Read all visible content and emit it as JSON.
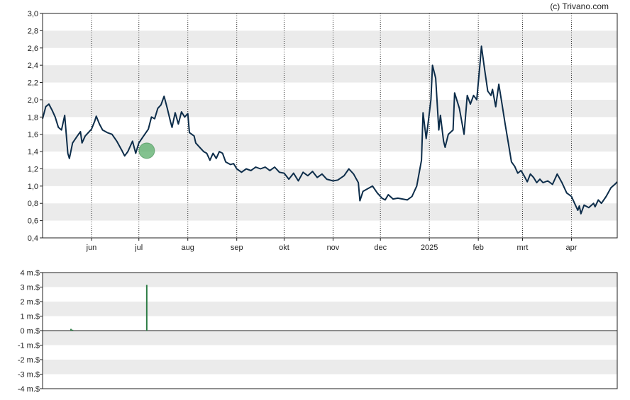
{
  "credit": "(c) Trivano.com",
  "colors": {
    "band": "#ebebeb",
    "line": "#0d2d4a",
    "marker": "#5aad6a",
    "volume_bar": "#2e7d46",
    "frame": "#222222",
    "grid": "#333333"
  },
  "chart_data": [
    {
      "type": "line",
      "title": "",
      "xlabel": "",
      "ylabel": "",
      "ylim": [
        0.4,
        3.0
      ],
      "y_ticks": [
        {
          "value": 3.0,
          "label": "3,0"
        },
        {
          "value": 2.8,
          "label": "2,8"
        },
        {
          "value": 2.6,
          "label": "2,6"
        },
        {
          "value": 2.4,
          "label": "2,4"
        },
        {
          "value": 2.2,
          "label": "2,2"
        },
        {
          "value": 2.0,
          "label": "2,0"
        },
        {
          "value": 1.8,
          "label": "1,8"
        },
        {
          "value": 1.6,
          "label": "1,6"
        },
        {
          "value": 1.4,
          "label": "1,4"
        },
        {
          "value": 1.2,
          "label": "1,2"
        },
        {
          "value": 1.0,
          "label": "1,0"
        },
        {
          "value": 0.8,
          "label": "0,8"
        },
        {
          "value": 0.6,
          "label": "0,6"
        },
        {
          "value": 0.4,
          "label": "0,4"
        }
      ],
      "xlim": [
        "2024-05-01",
        "2025-04-30"
      ],
      "x_ticks": [
        {
          "date": "2024-06-01",
          "label": "jun"
        },
        {
          "date": "2024-07-01",
          "label": "jul"
        },
        {
          "date": "2024-08-01",
          "label": "aug"
        },
        {
          "date": "2024-09-01",
          "label": "sep"
        },
        {
          "date": "2024-10-01",
          "label": "okt"
        },
        {
          "date": "2024-11-01",
          "label": "nov"
        },
        {
          "date": "2024-12-01",
          "label": "dec"
        },
        {
          "date": "2025-01-01",
          "label": "2025"
        },
        {
          "date": "2025-02-01",
          "label": "feb"
        },
        {
          "date": "2025-03-01",
          "label": "mrt"
        },
        {
          "date": "2025-04-01",
          "label": "apr"
        }
      ],
      "grid": "vertical dotted lines at month ticks, alternating horizontal bands",
      "series": [
        {
          "points": [
            [
              "2024-05-01",
              1.78
            ],
            [
              "2024-05-03",
              1.92
            ],
            [
              "2024-05-05",
              1.95
            ],
            [
              "2024-05-07",
              1.88
            ],
            [
              "2024-05-09",
              1.8
            ],
            [
              "2024-05-11",
              1.68
            ],
            [
              "2024-05-13",
              1.65
            ],
            [
              "2024-05-15",
              1.82
            ],
            [
              "2024-05-17",
              1.38
            ],
            [
              "2024-05-18",
              1.32
            ],
            [
              "2024-05-20",
              1.5
            ],
            [
              "2024-05-23",
              1.58
            ],
            [
              "2024-05-25",
              1.63
            ],
            [
              "2024-05-26",
              1.5
            ],
            [
              "2024-05-28",
              1.58
            ],
            [
              "2024-06-01",
              1.66
            ],
            [
              "2024-06-03",
              1.75
            ],
            [
              "2024-06-04",
              1.81
            ],
            [
              "2024-06-06",
              1.72
            ],
            [
              "2024-06-08",
              1.65
            ],
            [
              "2024-06-11",
              1.62
            ],
            [
              "2024-06-14",
              1.6
            ],
            [
              "2024-06-17",
              1.52
            ],
            [
              "2024-06-20",
              1.42
            ],
            [
              "2024-06-22",
              1.35
            ],
            [
              "2024-06-24",
              1.4
            ],
            [
              "2024-06-27",
              1.52
            ],
            [
              "2024-06-29",
              1.38
            ],
            [
              "2024-07-01",
              1.5
            ],
            [
              "2024-07-04",
              1.58
            ],
            [
              "2024-07-07",
              1.66
            ],
            [
              "2024-07-09",
              1.8
            ],
            [
              "2024-07-11",
              1.78
            ],
            [
              "2024-07-13",
              1.9
            ],
            [
              "2024-07-15",
              1.94
            ],
            [
              "2024-07-17",
              2.04
            ],
            [
              "2024-07-19",
              1.9
            ],
            [
              "2024-07-21",
              1.75
            ],
            [
              "2024-07-22",
              1.68
            ],
            [
              "2024-07-24",
              1.85
            ],
            [
              "2024-07-26",
              1.72
            ],
            [
              "2024-07-28",
              1.86
            ],
            [
              "2024-07-30",
              1.8
            ],
            [
              "2024-08-01",
              1.84
            ],
            [
              "2024-08-02",
              1.62
            ],
            [
              "2024-08-05",
              1.58
            ],
            [
              "2024-08-06",
              1.5
            ],
            [
              "2024-08-08",
              1.46
            ],
            [
              "2024-08-11",
              1.4
            ],
            [
              "2024-08-13",
              1.38
            ],
            [
              "2024-08-15",
              1.3
            ],
            [
              "2024-08-17",
              1.38
            ],
            [
              "2024-08-19",
              1.32
            ],
            [
              "2024-08-21",
              1.4
            ],
            [
              "2024-08-23",
              1.38
            ],
            [
              "2024-08-25",
              1.28
            ],
            [
              "2024-08-28",
              1.25
            ],
            [
              "2024-08-30",
              1.26
            ],
            [
              "2024-09-01",
              1.2
            ],
            [
              "2024-09-04",
              1.16
            ],
            [
              "2024-09-07",
              1.2
            ],
            [
              "2024-09-10",
              1.18
            ],
            [
              "2024-09-13",
              1.22
            ],
            [
              "2024-09-16",
              1.2
            ],
            [
              "2024-09-19",
              1.22
            ],
            [
              "2024-09-22",
              1.18
            ],
            [
              "2024-09-25",
              1.22
            ],
            [
              "2024-09-28",
              1.16
            ],
            [
              "2024-10-01",
              1.15
            ],
            [
              "2024-10-04",
              1.08
            ],
            [
              "2024-10-07",
              1.15
            ],
            [
              "2024-10-10",
              1.06
            ],
            [
              "2024-10-13",
              1.16
            ],
            [
              "2024-10-16",
              1.12
            ],
            [
              "2024-10-19",
              1.17
            ],
            [
              "2024-10-22",
              1.1
            ],
            [
              "2024-10-25",
              1.14
            ],
            [
              "2024-10-28",
              1.08
            ],
            [
              "2024-11-01",
              1.06
            ],
            [
              "2024-11-04",
              1.07
            ],
            [
              "2024-11-08",
              1.12
            ],
            [
              "2024-11-11",
              1.2
            ],
            [
              "2024-11-14",
              1.14
            ],
            [
              "2024-11-17",
              1.04
            ],
            [
              "2024-11-18",
              0.83
            ],
            [
              "2024-11-20",
              0.94
            ],
            [
              "2024-11-23",
              0.97
            ],
            [
              "2024-11-26",
              1.0
            ],
            [
              "2024-11-29",
              0.92
            ],
            [
              "2024-12-02",
              0.86
            ],
            [
              "2024-12-04",
              0.84
            ],
            [
              "2024-12-06",
              0.9
            ],
            [
              "2024-12-09",
              0.85
            ],
            [
              "2024-12-12",
              0.86
            ],
            [
              "2024-12-15",
              0.85
            ],
            [
              "2024-12-18",
              0.84
            ],
            [
              "2024-12-21",
              0.88
            ],
            [
              "2024-12-24",
              1.0
            ],
            [
              "2024-12-27",
              1.3
            ],
            [
              "2024-12-28",
              1.85
            ],
            [
              "2024-12-30",
              1.55
            ],
            [
              "2024-12-31",
              1.7
            ],
            [
              "2025-01-02",
              2.0
            ],
            [
              "2025-01-03",
              2.4
            ],
            [
              "2025-01-05",
              2.25
            ],
            [
              "2025-01-07",
              1.65
            ],
            [
              "2025-01-08",
              1.82
            ],
            [
              "2025-01-10",
              1.52
            ],
            [
              "2025-01-11",
              1.45
            ],
            [
              "2025-01-13",
              1.6
            ],
            [
              "2025-01-16",
              1.65
            ],
            [
              "2025-01-17",
              2.08
            ],
            [
              "2025-01-20",
              1.9
            ],
            [
              "2025-01-22",
              1.7
            ],
            [
              "2025-01-23",
              1.6
            ],
            [
              "2025-01-25",
              2.05
            ],
            [
              "2025-01-27",
              1.95
            ],
            [
              "2025-01-29",
              2.05
            ],
            [
              "2025-01-31",
              2.0
            ],
            [
              "2025-02-02",
              2.4
            ],
            [
              "2025-02-03",
              2.62
            ],
            [
              "2025-02-05",
              2.35
            ],
            [
              "2025-02-07",
              2.1
            ],
            [
              "2025-02-09",
              2.05
            ],
            [
              "2025-02-10",
              2.12
            ],
            [
              "2025-02-12",
              1.92
            ],
            [
              "2025-02-14",
              2.18
            ],
            [
              "2025-02-16",
              1.95
            ],
            [
              "2025-02-18",
              1.72
            ],
            [
              "2025-02-20",
              1.5
            ],
            [
              "2025-02-22",
              1.28
            ],
            [
              "2025-02-24",
              1.23
            ],
            [
              "2025-02-26",
              1.15
            ],
            [
              "2025-02-28",
              1.18
            ],
            [
              "2025-03-02",
              1.12
            ],
            [
              "2025-03-04",
              1.05
            ],
            [
              "2025-03-06",
              1.14
            ],
            [
              "2025-03-08",
              1.1
            ],
            [
              "2025-03-10",
              1.04
            ],
            [
              "2025-03-12",
              1.08
            ],
            [
              "2025-03-14",
              1.04
            ],
            [
              "2025-03-17",
              1.06
            ],
            [
              "2025-03-20",
              1.02
            ],
            [
              "2025-03-23",
              1.14
            ],
            [
              "2025-03-26",
              1.04
            ],
            [
              "2025-03-29",
              0.92
            ],
            [
              "2025-04-01",
              0.88
            ],
            [
              "2025-04-03",
              0.8
            ],
            [
              "2025-04-05",
              0.72
            ],
            [
              "2025-04-06",
              0.77
            ],
            [
              "2025-04-07",
              0.68
            ],
            [
              "2025-04-09",
              0.78
            ],
            [
              "2025-04-12",
              0.75
            ],
            [
              "2025-04-15",
              0.8
            ],
            [
              "2025-04-16",
              0.76
            ],
            [
              "2025-04-18",
              0.84
            ],
            [
              "2025-04-20",
              0.8
            ],
            [
              "2025-04-23",
              0.88
            ],
            [
              "2025-04-26",
              0.98
            ],
            [
              "2025-04-29",
              1.03
            ],
            [
              "2025-04-30",
              1.05
            ]
          ]
        }
      ],
      "marker": {
        "date": "2024-07-06",
        "value": 1.41
      }
    },
    {
      "type": "bar",
      "title": "",
      "ylim": [
        -4,
        4
      ],
      "y_ticks": [
        {
          "value": 4,
          "label": "4 m.$"
        },
        {
          "value": 3,
          "label": "3 m.$"
        },
        {
          "value": 2,
          "label": "2 m.$"
        },
        {
          "value": 1,
          "label": "1 m.$"
        },
        {
          "value": 0,
          "label": "0 m.$"
        },
        {
          "value": -1,
          "label": "-1 m.$"
        },
        {
          "value": -2,
          "label": "-2 m.$"
        },
        {
          "value": -3,
          "label": "-3 m.$"
        },
        {
          "value": -4,
          "label": "-4 m.$"
        }
      ],
      "bars": [
        {
          "date": "2024-05-19",
          "value": 0.12
        },
        {
          "date": "2024-05-20",
          "value": 0.06
        },
        {
          "date": "2024-07-06",
          "value": 3.15
        }
      ]
    }
  ]
}
